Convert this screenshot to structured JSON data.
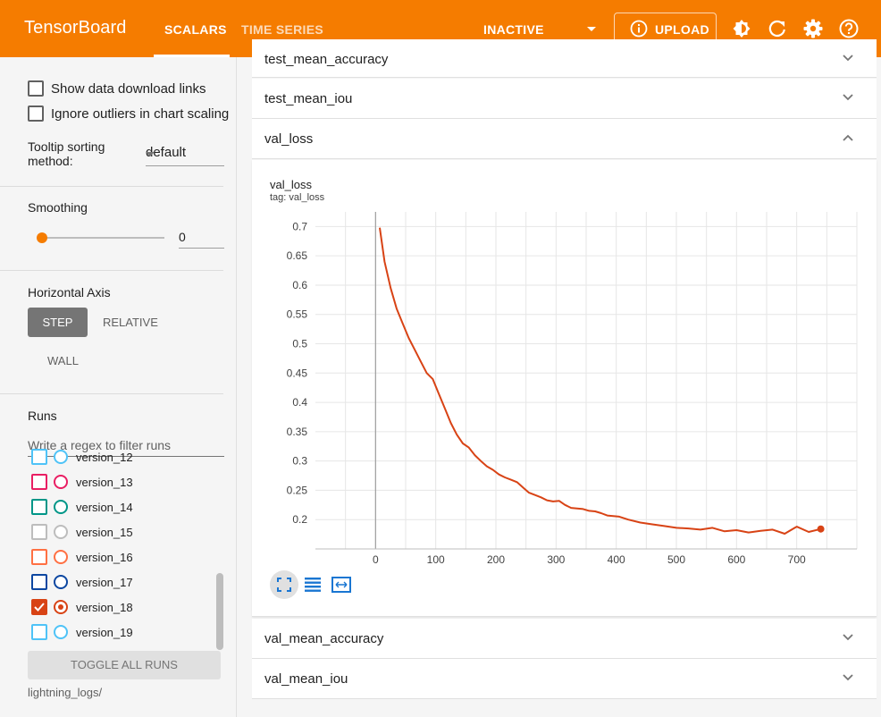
{
  "header": {
    "brand": "TensorBoard",
    "tabs": [
      "SCALARS",
      "TIME SERIES"
    ],
    "run_status": "INACTIVE",
    "upload_label": "UPLOAD",
    "colors": {
      "primary": "#f57c00",
      "text": "#ffffff"
    },
    "icons": [
      "info-icon",
      "brightness-icon",
      "refresh-icon",
      "settings-icon",
      "help-icon"
    ]
  },
  "sidebar": {
    "show_download_links": "Show data download links",
    "ignore_outliers": "Ignore outliers in chart scaling",
    "tooltip_sorting_label_line1": "Tooltip sorting",
    "tooltip_sorting_label_line2": "method:",
    "tooltip_sorting_value": "default",
    "smoothing_title": "Smoothing",
    "smoothing_value": "0",
    "smoothing_fraction": 0,
    "horizontal_axis_title": "Horizontal Axis",
    "axis_options": [
      "STEP",
      "RELATIVE",
      "WALL"
    ],
    "axis_selected": "STEP",
    "runs_title": "Runs",
    "runs_filter_placeholder": "Write a regex to filter runs",
    "runs": [
      {
        "name": "version_12",
        "color": "#4fc3f7",
        "checked": false
      },
      {
        "name": "version_13",
        "color": "#e91e63",
        "checked": false
      },
      {
        "name": "version_14",
        "color": "#009688",
        "checked": false
      },
      {
        "name": "version_15",
        "color": "#bdbdbd",
        "checked": false
      },
      {
        "name": "version_16",
        "color": "#ff7043",
        "checked": false
      },
      {
        "name": "version_17",
        "color": "#0d47a1",
        "checked": false
      },
      {
        "name": "version_18",
        "color": "#d84315",
        "checked": true
      },
      {
        "name": "version_19",
        "color": "#4fc3f7",
        "checked": false
      }
    ],
    "toggle_all_label": "TOGGLE ALL RUNS",
    "logdir": "lightning_logs/"
  },
  "main": {
    "collapsed_top": "test_mean_accuracy",
    "cards": [
      "test_mean_iou",
      "val_loss"
    ],
    "cards_bottom": [
      "val_mean_accuracy",
      "val_mean_iou"
    ],
    "chart": {
      "title": "val_loss",
      "tag": "tag: val_loss",
      "tools": [
        "fit-domain-icon",
        "toggle-log-scale-icon",
        "reset-zoom-icon"
      ]
    }
  },
  "chart_data": {
    "type": "line",
    "title": "val_loss",
    "subtitle": "tag: val_loss",
    "xlabel": "",
    "ylabel": "",
    "xlim": [
      -100,
      800
    ],
    "ylim": [
      0.15,
      0.725
    ],
    "x_ticks": [
      0,
      100,
      200,
      300,
      400,
      500,
      600,
      700
    ],
    "y_ticks": [
      0.2,
      0.25,
      0.3,
      0.35,
      0.4,
      0.45,
      0.5,
      0.55,
      0.6,
      0.65,
      0.7
    ],
    "grid": true,
    "series": [
      {
        "color": "#d84315",
        "x": [
          7,
          15,
          25,
          35,
          45,
          55,
          65,
          75,
          85,
          95,
          105,
          115,
          125,
          135,
          145,
          155,
          165,
          175,
          185,
          195,
          205,
          215,
          225,
          235,
          245,
          255,
          265,
          275,
          285,
          295,
          305,
          315,
          325,
          335,
          345,
          355,
          365,
          375,
          385,
          395,
          405,
          420,
          440,
          460,
          480,
          500,
          520,
          540,
          560,
          580,
          600,
          620,
          640,
          660,
          680,
          700,
          720,
          740
        ],
        "values": [
          0.698,
          0.64,
          0.595,
          0.56,
          0.535,
          0.51,
          0.49,
          0.47,
          0.45,
          0.44,
          0.415,
          0.39,
          0.365,
          0.345,
          0.33,
          0.323,
          0.31,
          0.3,
          0.291,
          0.285,
          0.277,
          0.272,
          0.268,
          0.264,
          0.255,
          0.246,
          0.242,
          0.238,
          0.233,
          0.231,
          0.232,
          0.225,
          0.22,
          0.219,
          0.218,
          0.215,
          0.214,
          0.211,
          0.207,
          0.206,
          0.205,
          0.2,
          0.195,
          0.192,
          0.189,
          0.186,
          0.185,
          0.183,
          0.186,
          0.18,
          0.182,
          0.178,
          0.181,
          0.183,
          0.176,
          0.188,
          0.179,
          0.184
        ]
      }
    ]
  }
}
